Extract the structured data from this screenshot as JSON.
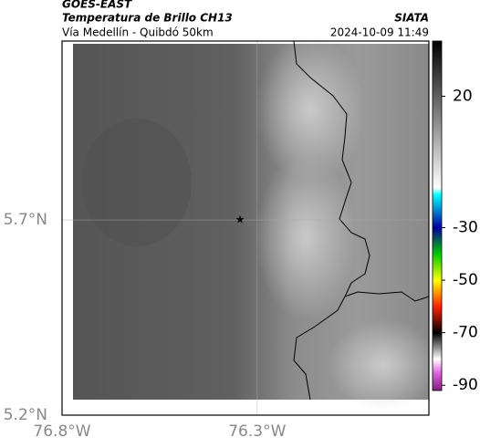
{
  "header": {
    "satellite": "GOES-EAST",
    "product": "Temperatura de Brillo CH13",
    "region": "Vía Medellín - Quibdó 50km",
    "source": "SIATA",
    "timestamp": "2024-10-09 11:49"
  },
  "map": {
    "lonlim": [
      -76.8,
      -75.86
    ],
    "latlim": [
      5.2,
      6.158
    ],
    "lon_ticks": [
      {
        "value": -76.8,
        "label": "76.8°W"
      },
      {
        "value": -76.3,
        "label": "76.3°W"
      }
    ],
    "lat_ticks": [
      {
        "value": 5.2,
        "label": "5.2°N"
      },
      {
        "value": 5.7,
        "label": "5.7°N"
      }
    ],
    "marker": {
      "lon": -76.344,
      "lat": 5.702
    }
  },
  "colorbar": {
    "lim": [
      -92,
      41
    ],
    "ticks": [
      20,
      -30,
      -50,
      -70,
      -90
    ]
  }
}
